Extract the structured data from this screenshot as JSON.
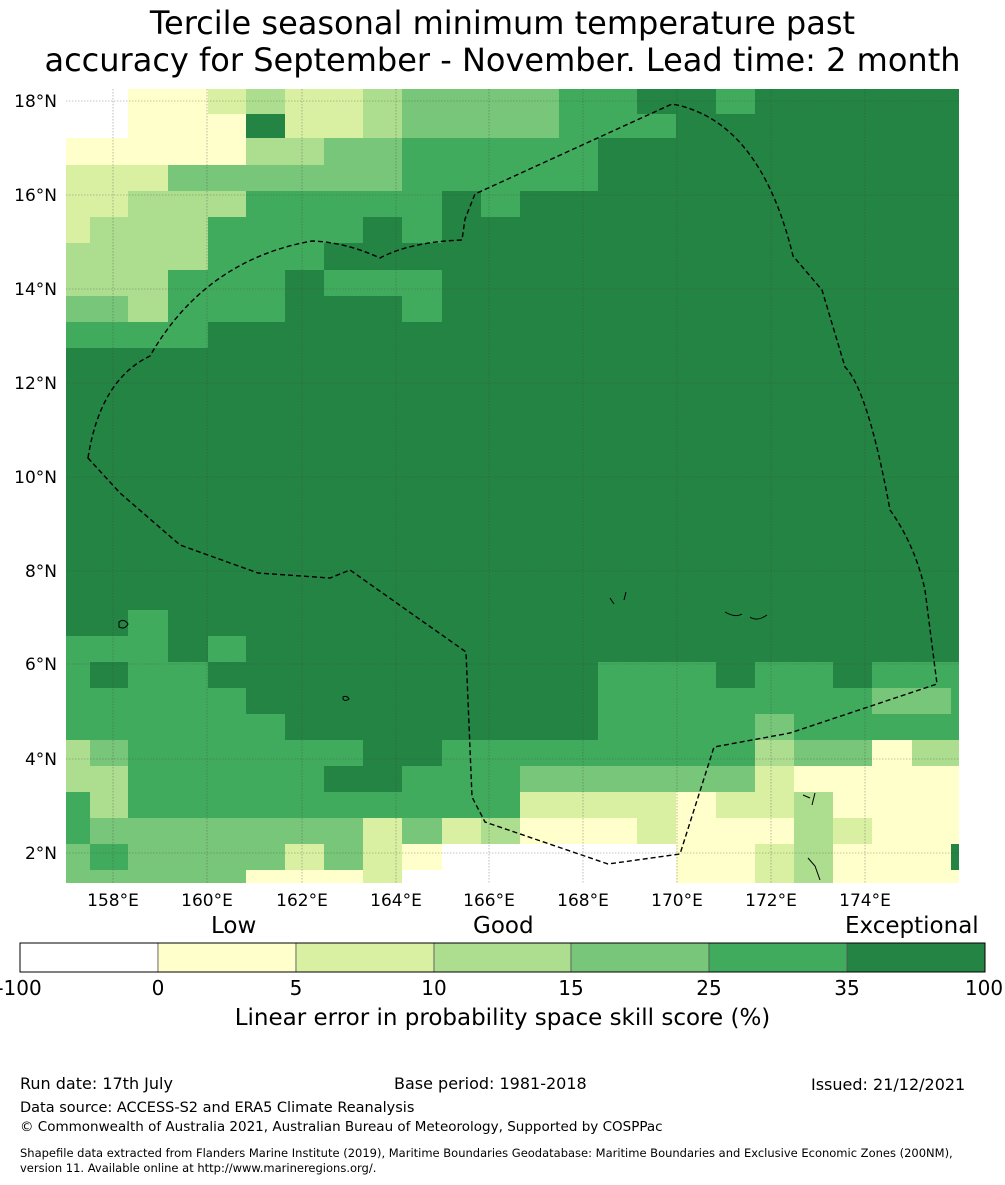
{
  "title": {
    "line1": "Tercile seasonal minimum temperature past",
    "line2": "accuracy for September - November. Lead time: 2 month"
  },
  "map": {
    "lon_labels": [
      "158°E",
      "160°E",
      "162°E",
      "164°E",
      "166°E",
      "168°E",
      "170°E",
      "172°E",
      "174°E"
    ],
    "lat_labels": [
      "18°N",
      "16°N",
      "14°N",
      "12°N",
      "10°N",
      "8°N",
      "6°N",
      "4°N",
      "2°N"
    ],
    "boundary_style": "dashed black line (EEZ)"
  },
  "colorbar": {
    "categories": [
      "Low",
      "Good",
      "Exceptional"
    ],
    "bin_labels": [
      "-100",
      "0",
      "5",
      "10",
      "15",
      "25",
      "35",
      "100"
    ],
    "colors": [
      "#ffffff",
      "#ffffcc",
      "#d9f0a3",
      "#addd8e",
      "#78c679",
      "#41ab5d",
      "#238443"
    ],
    "title": "Linear error in probability space skill score (%)"
  },
  "footer": {
    "run_date": "Run date: 17th July",
    "base_period": "Base period: 1981-2018",
    "issued": "Issued: 21/12/2021",
    "data_source": "Data source: ACCESS-S2 and ERA5 Climate Reanalysis",
    "copyright": "© Commonwealth of Australia 2021, Australian Bureau of Meteorology, Supported by COSPPac",
    "shapefile_line1": "Shapefile data extracted from Flanders Marine Institute (2019), Maritime Boundaries Geodatabase: Maritime Boundaries and Exclusive Economic Zones (200NM),",
    "shapefile_line2": "version 11. Available online at http://www.marineregions.org/."
  }
}
